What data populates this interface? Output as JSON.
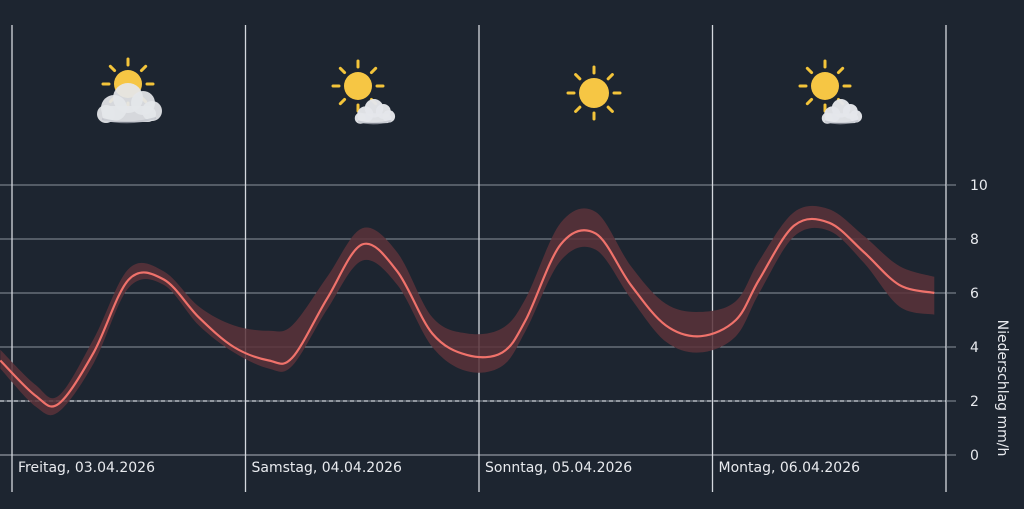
{
  "chart_data": {
    "type": "line",
    "ylabel": "Niederschlag mm/h",
    "ylim": [
      0,
      10
    ],
    "yticks": [
      "0",
      "2",
      "4",
      "6",
      "8",
      "10"
    ],
    "threshold": 2,
    "colors": {
      "background": "#1d2530",
      "line": "#f0726b",
      "band": "#5a3339",
      "grid": "#8b929c"
    },
    "days": [
      {
        "label": "Freitag, 03.04.2026",
        "icon": "sun-behind-cloud-icon"
      },
      {
        "label": "Samstag, 04.04.2026",
        "icon": "sun-small-cloud-icon"
      },
      {
        "label": "Sonntag, 05.04.2026",
        "icon": "sun-icon"
      },
      {
        "label": "Montag, 06.04.2026",
        "icon": "sun-small-cloud-icon"
      }
    ],
    "x": [
      -0.05,
      0.1,
      0.2,
      0.35,
      0.5,
      0.65,
      0.8,
      0.95,
      1.1,
      1.2,
      1.35,
      1.5,
      1.65,
      1.8,
      1.95,
      2.1,
      2.2,
      2.35,
      2.5,
      2.65,
      2.8,
      2.95,
      3.1,
      3.2,
      3.35,
      3.5,
      3.65,
      3.8,
      3.95
    ],
    "series": [
      {
        "values": [
          3.5,
          2.2,
          1.9,
          3.8,
          6.5,
          6.5,
          5.1,
          4.0,
          3.5,
          3.6,
          5.8,
          7.8,
          6.8,
          4.5,
          3.7,
          3.8,
          5.0,
          7.8,
          8.2,
          6.3,
          4.8,
          4.4,
          5.0,
          6.5,
          8.5,
          8.6,
          7.5,
          6.3,
          6.0
        ],
        "lower": [
          3.2,
          1.8,
          1.6,
          3.4,
          6.2,
          6.3,
          4.8,
          3.8,
          3.2,
          3.3,
          5.4,
          7.2,
          6.3,
          4.0,
          3.1,
          3.3,
          4.6,
          7.2,
          7.6,
          5.8,
          4.2,
          3.8,
          4.4,
          6.0,
          8.1,
          8.3,
          7.1,
          5.5,
          5.2
        ],
        "upper": [
          3.9,
          2.6,
          2.2,
          4.3,
          6.9,
          6.8,
          5.5,
          4.8,
          4.6,
          4.8,
          6.6,
          8.4,
          7.5,
          5.1,
          4.5,
          4.7,
          5.8,
          8.6,
          9.0,
          7.0,
          5.6,
          5.3,
          5.7,
          7.2,
          9.0,
          9.1,
          8.1,
          7.0,
          6.6
        ]
      }
    ]
  }
}
